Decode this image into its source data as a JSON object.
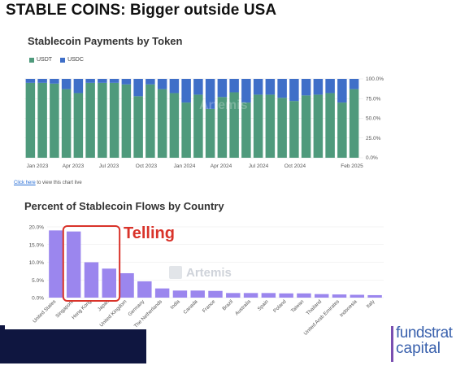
{
  "slide": {
    "title": "STABLE COINS: Bigger outside USA",
    "note_link": "Click here",
    "note_rest": "to view this chart live"
  },
  "colors": {
    "usdt": "#4f9a7c",
    "usdc": "#3f6fc8",
    "country_bar": "#9b86ee",
    "annotation": "#d9332a",
    "watermark": "#cfd3da"
  },
  "watermark": "Artemis",
  "annotation": {
    "text": "Telling"
  },
  "logo": {
    "line1": "fundstrat",
    "line2": "capital"
  },
  "chart_data": [
    {
      "type": "bar",
      "stacked": true,
      "title": "Stablecoin Payments by Token",
      "legend": [
        "USDT",
        "USDC"
      ],
      "legend_position": "top-left",
      "xlabels": [
        "Jan 2023",
        "Apr 2023",
        "Jul 2023",
        "Oct 2023",
        "Jan 2024",
        "Apr 2024",
        "Jul 2024",
        "Oct 2024",
        "Feb 2025"
      ],
      "ytick_labels": [
        "0.0%",
        "25.0%",
        "50.0%",
        "75.0%",
        "100.0%"
      ],
      "ylim": [
        0,
        100
      ],
      "y_axis_position": "right",
      "series": [
        {
          "name": "USDT",
          "values": [
            95,
            95,
            94,
            87,
            82,
            95,
            95,
            95,
            93,
            78,
            93,
            87,
            82,
            70,
            80,
            62,
            77,
            83,
            70,
            80,
            80,
            76,
            72,
            79,
            80,
            82,
            70,
            87
          ]
        },
        {
          "name": "USDC",
          "values": [
            5,
            5,
            6,
            13,
            18,
            5,
            5,
            5,
            7,
            22,
            7,
            13,
            18,
            30,
            20,
            38,
            23,
            17,
            30,
            20,
            20,
            24,
            28,
            21,
            20,
            18,
            30,
            13
          ]
        }
      ]
    },
    {
      "type": "bar",
      "title": "Percent of Stablecoin Flows by Country",
      "categories": [
        "United States",
        "Singapore",
        "Hong Kong",
        "Japan",
        "United Kingdom",
        "Germany",
        "The Netherlands",
        "India",
        "Canada",
        "France",
        "Brazil",
        "Australia",
        "Spain",
        "Poland",
        "Taiwan",
        "Thailand",
        "United Arab Emirates",
        "Indonesia",
        "Italy"
      ],
      "values": [
        19.0,
        18.7,
        10.0,
        8.2,
        6.9,
        4.6,
        2.6,
        2.0,
        2.0,
        1.9,
        1.3,
        1.3,
        1.3,
        1.2,
        1.2,
        1.0,
        0.9,
        0.8,
        0.7
      ],
      "ytick_labels": [
        "0.0%",
        "5.0%",
        "10.0%",
        "15.0%",
        "20.0%"
      ],
      "ylim": [
        0,
        20
      ]
    }
  ]
}
